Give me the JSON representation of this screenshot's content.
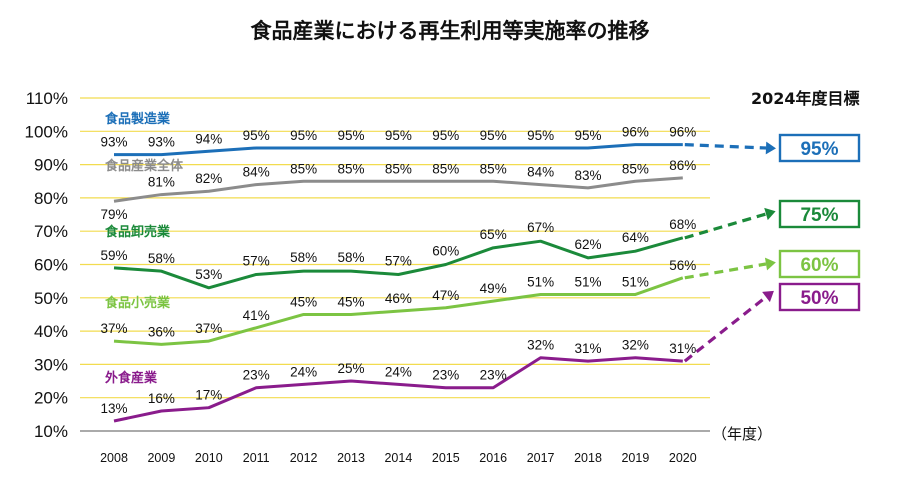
{
  "chart_data": {
    "type": "line",
    "title": "食品産業における再生利用等実施率の推移",
    "x_unit": "（年度）",
    "target_heading": "2024年度目標",
    "y_ticks": [
      "10%",
      "20%",
      "30%",
      "40%",
      "50%",
      "60%",
      "70%",
      "80%",
      "90%",
      "100%",
      "110%"
    ],
    "ylim": [
      10,
      110
    ],
    "grid": true,
    "categories": [
      "2008",
      "2009",
      "2010",
      "2011",
      "2012",
      "2013",
      "2014",
      "2015",
      "2016",
      "2017",
      "2018",
      "2019",
      "2020"
    ],
    "series": [
      {
        "name": "食品製造業",
        "color": "#1c6fb8",
        "values": [
          93,
          93,
          94,
          95,
          95,
          95,
          95,
          95,
          95,
          95,
          95,
          96,
          96
        ],
        "labels": [
          "93%",
          "93%",
          "94%",
          "95%",
          "95%",
          "95%",
          "95%",
          "95%",
          "95%",
          "95%",
          "95%",
          "96%",
          "96%"
        ],
        "target": 95,
        "target_label": "95%"
      },
      {
        "name": "食品産業全体",
        "color": "#8c8c8c",
        "values": [
          79,
          81,
          82,
          84,
          85,
          85,
          85,
          85,
          85,
          84,
          83,
          85,
          86
        ],
        "labels": [
          "79%",
          "81%",
          "82%",
          "84%",
          "85%",
          "85%",
          "85%",
          "85%",
          "85%",
          "84%",
          "83%",
          "85%",
          "86%"
        ]
      },
      {
        "name": "食品卸売業",
        "color": "#1b8a3a",
        "values": [
          59,
          58,
          53,
          57,
          58,
          58,
          57,
          60,
          65,
          67,
          62,
          64,
          68
        ],
        "labels": [
          "59%",
          "58%",
          "53%",
          "57%",
          "58%",
          "58%",
          "57%",
          "60%",
          "65%",
          "67%",
          "62%",
          "64%",
          "68%"
        ],
        "target": 75,
        "target_label": "75%"
      },
      {
        "name": "食品小売業",
        "color": "#7cc443",
        "values": [
          37,
          36,
          37,
          41,
          45,
          45,
          46,
          47,
          49,
          51,
          51,
          51,
          56
        ],
        "labels": [
          "37%",
          "36%",
          "37%",
          "41%",
          "45%",
          "45%",
          "46%",
          "47%",
          "49%",
          "51%",
          "51%",
          "51%",
          "56%"
        ],
        "target": 60,
        "target_label": "60%"
      },
      {
        "name": "外食産業",
        "color": "#8a1c8c",
        "values": [
          13,
          16,
          17,
          23,
          24,
          25,
          24,
          23,
          23,
          32,
          31,
          32,
          31
        ],
        "labels": [
          "13%",
          "16%",
          "17%",
          "23%",
          "24%",
          "25%",
          "24%",
          "23%",
          "23%",
          "32%",
          "31%",
          "32%",
          "31%"
        ],
        "target": 50,
        "target_label": "50%"
      }
    ]
  }
}
